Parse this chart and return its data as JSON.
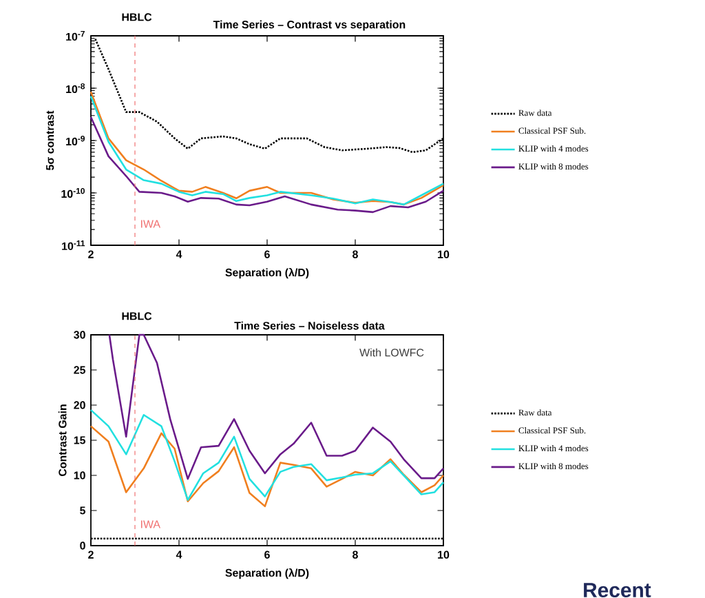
{
  "chart_data": [
    {
      "type": "line",
      "title": "HBLC",
      "subtitle": "Time Series – Contrast vs separation",
      "xlabel": "Separation (λ/D)",
      "ylabel": "5σ contrast",
      "log": "y",
      "xlim": [
        2,
        10
      ],
      "xticks": [
        2,
        4,
        6,
        8,
        10
      ],
      "ylim": [
        1e-11,
        1e-07
      ],
      "yticks": [
        {
          "value": 1e-11,
          "label": "10$^{-11}$"
        },
        {
          "value": 1e-10,
          "label": "10$^{-10}$"
        },
        {
          "value": 1e-09,
          "label": "10$^{-9}$"
        },
        {
          "value": 1e-08,
          "label": "10$^{-8}$"
        },
        {
          "value": 1e-07,
          "label": "10$^{-7}$"
        }
      ],
      "grid": false,
      "legend": "right",
      "ref_lines": [
        {
          "axis": "x",
          "value": 3,
          "label": "IWA",
          "color": "#f07070",
          "line_style": "dashed"
        }
      ],
      "series": [
        {
          "name": "Raw data",
          "color": "#000000",
          "line_style": "dotted",
          "x": [
            2.1,
            2.4,
            2.8,
            3.1,
            3.5,
            3.9,
            4.2,
            4.5,
            5.0,
            5.3,
            5.6,
            5.95,
            6.3,
            6.9,
            7.3,
            7.7,
            8.3,
            8.7,
            9.0,
            9.3,
            9.6,
            10
          ],
          "values": [
            8.7e-08,
            2.3e-08,
            3.5e-09,
            3.5e-09,
            2.3e-09,
            1.1e-09,
            7e-10,
            1.1e-09,
            1.2e-09,
            1.1e-09,
            8.5e-10,
            7e-10,
            1.1e-09,
            1.1e-09,
            7.5e-10,
            6.5e-10,
            7e-10,
            7.5e-10,
            7.2e-10,
            6e-10,
            6.5e-10,
            1.1e-09
          ]
        },
        {
          "name": "Classical PSF Sub.",
          "color": "#f07f1f",
          "line_style": "solid",
          "x": [
            2.0,
            2.4,
            2.8,
            3.2,
            3.6,
            4.0,
            4.3,
            4.6,
            5.0,
            5.3,
            5.6,
            6.0,
            6.3,
            7.0,
            7.5,
            8.0,
            8.4,
            8.8,
            9.1,
            9.5,
            10
          ],
          "values": [
            8.5e-09,
            1.1e-09,
            4.2e-10,
            2.8e-10,
            1.7e-10,
            1.1e-10,
            1.05e-10,
            1.3e-10,
            1e-10,
            7.9e-11,
            1.1e-10,
            1.3e-10,
            1e-10,
            1e-10,
            7.5e-11,
            6.5e-11,
            7e-11,
            6.7e-11,
            6e-11,
            8e-11,
            1.4e-10
          ]
        },
        {
          "name": "KLIP with 4 modes",
          "color": "#22e0e0",
          "line_style": "solid",
          "x": [
            2.0,
            2.4,
            2.8,
            3.2,
            3.6,
            4.0,
            4.3,
            4.6,
            5.0,
            5.3,
            5.6,
            6.0,
            6.3,
            7.0,
            7.5,
            8.0,
            8.4,
            8.8,
            9.1,
            9.5,
            10
          ],
          "values": [
            7e-09,
            9.5e-10,
            2.8e-10,
            1.75e-10,
            1.5e-10,
            1.05e-10,
            9e-11,
            1.05e-10,
            9.5e-11,
            7e-11,
            8e-11,
            9e-11,
            1.05e-10,
            9e-11,
            7.8e-11,
            6.3e-11,
            7.5e-11,
            6.7e-11,
            6e-11,
            9e-11,
            1.5e-10
          ]
        },
        {
          "name": "KLIP with 8 modes",
          "color": "#6a1b8a",
          "line_style": "solid",
          "x": [
            2.0,
            2.4,
            2.8,
            3.1,
            3.6,
            3.9,
            4.2,
            4.5,
            4.9,
            5.3,
            5.6,
            6.0,
            6.4,
            7.0,
            7.6,
            8.0,
            8.4,
            8.8,
            9.2,
            9.6,
            10
          ],
          "values": [
            2.8e-09,
            5e-10,
            2.1e-10,
            1.05e-10,
            1e-10,
            8.6e-11,
            6.8e-11,
            8e-11,
            7.8e-11,
            6e-11,
            5.8e-11,
            6.8e-11,
            8.6e-11,
            6e-11,
            4.8e-11,
            4.6e-11,
            4.3e-11,
            5.6e-11,
            5.3e-11,
            6.8e-11,
            1.1e-10
          ]
        }
      ]
    },
    {
      "type": "line",
      "title": "HBLC",
      "subtitle": "Time Series – Noiseless data",
      "xlabel": "Separation (λ/D)",
      "ylabel": "Contrast Gain",
      "xlim": [
        2,
        10
      ],
      "xticks": [
        2,
        4,
        6,
        8,
        10
      ],
      "ylim": [
        0,
        30
      ],
      "yticks": [
        0,
        5,
        10,
        15,
        20,
        25,
        30
      ],
      "grid": false,
      "legend": "right",
      "annotations": [
        "With LOWFC",
        "Recent"
      ],
      "ref_lines": [
        {
          "axis": "x",
          "value": 3,
          "label": "IWA",
          "color": "#f07070",
          "line_style": "dashed"
        }
      ],
      "series": [
        {
          "name": "Raw data",
          "color": "#000000",
          "line_style": "dotted",
          "x": [
            2,
            10
          ],
          "values": [
            1,
            1
          ]
        },
        {
          "name": "Classical PSF Sub.",
          "color": "#f07f1f",
          "line_style": "solid",
          "x": [
            2.0,
            2.4,
            2.8,
            3.2,
            3.6,
            3.9,
            4.2,
            4.55,
            4.9,
            5.25,
            5.6,
            5.95,
            6.3,
            6.6,
            7.0,
            7.35,
            7.7,
            8.0,
            8.4,
            8.8,
            9.1,
            9.5,
            9.8,
            10
          ],
          "values": [
            17,
            14.8,
            7.6,
            11,
            16,
            13.8,
            6.3,
            8.9,
            10.6,
            14,
            7.5,
            5.6,
            11.8,
            11.5,
            11,
            8.4,
            9.5,
            10.5,
            10,
            12.3,
            10.1,
            7.6,
            8.6,
            10
          ]
        },
        {
          "name": "KLIP with 4 modes",
          "color": "#22e0e0",
          "line_style": "solid",
          "x": [
            2.0,
            2.4,
            2.8,
            3.2,
            3.6,
            3.9,
            4.2,
            4.55,
            4.9,
            5.25,
            5.6,
            5.95,
            6.3,
            6.6,
            7.0,
            7.35,
            7.7,
            8.0,
            8.4,
            8.8,
            9.1,
            9.5,
            9.8,
            10
          ],
          "values": [
            19.3,
            17,
            13,
            18.6,
            17,
            12,
            6.5,
            10.3,
            11.8,
            15.5,
            9.5,
            7,
            10.5,
            11.2,
            11.6,
            9.3,
            9.7,
            10.1,
            10.3,
            12,
            10,
            7.3,
            7.6,
            9
          ]
        },
        {
          "name": "KLIP with 8 modes",
          "color": "#6a1b8a",
          "line_style": "solid",
          "x": [
            2.42,
            2.5,
            2.8,
            3.1,
            3.2,
            3.5,
            3.8,
            4.2,
            4.5,
            4.9,
            5.25,
            5.6,
            5.95,
            6.3,
            6.6,
            7.0,
            7.35,
            7.7,
            8.0,
            8.4,
            8.8,
            9.1,
            9.5,
            9.8,
            10
          ],
          "values": [
            30,
            26.5,
            15.5,
            30,
            30,
            26,
            18,
            9.5,
            14,
            14.2,
            18,
            13.5,
            10.3,
            13,
            14.5,
            17.5,
            12.8,
            12.8,
            13.5,
            16.8,
            14.8,
            12.3,
            9.6,
            9.6,
            11
          ]
        }
      ]
    }
  ]
}
